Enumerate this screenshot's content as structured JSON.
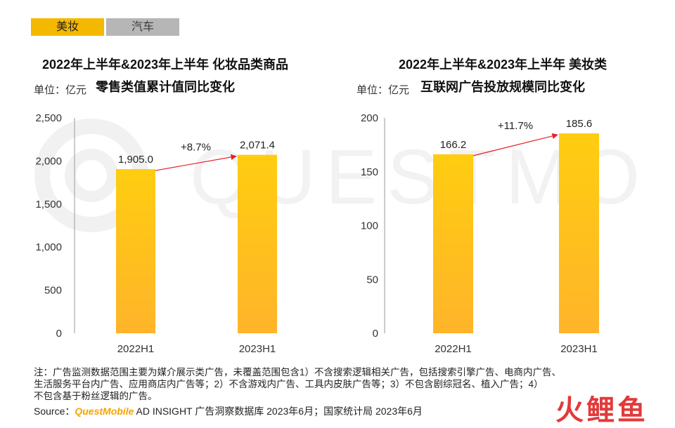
{
  "tabs": [
    {
      "label": "美妆",
      "active": true
    },
    {
      "label": "汽车",
      "active": false
    }
  ],
  "colors": {
    "accent": "#f5b800",
    "bar": "#ffc21a",
    "growth_arrow": "#e8202a",
    "axis": "#888888"
  },
  "watermark_text": "QUESTMOBILE",
  "panels": [
    {
      "title_line1": "2022年上半年&2023年上半年 化妆品类商品",
      "title_line2": "零售类值累计值同比变化",
      "unit": "单位：亿元"
    },
    {
      "title_line1": "2022年上半年&2023年上半年 美妆类",
      "title_line2": "互联网广告投放规模同比变化",
      "unit": "单位：亿元"
    }
  ],
  "chart_data": [
    {
      "type": "bar",
      "title": "2022年上半年&2023年上半年 化妆品类商品零售类值累计值同比变化",
      "ylabel": "单位：亿元",
      "categories": [
        "2022H1",
        "2023H1"
      ],
      "values": [
        1905.0,
        2071.4
      ],
      "value_labels": [
        "1,905.0",
        "2,071.4"
      ],
      "ylim": [
        0,
        2500
      ],
      "yticks": [
        0,
        500,
        1000,
        1500,
        2000,
        2500
      ],
      "ytick_labels": [
        "0",
        "500",
        "1,000",
        "1,500",
        "2,000",
        "2,500"
      ],
      "growth_label": "+8.7%",
      "grid": false
    },
    {
      "type": "bar",
      "title": "2022年上半年&2023年上半年 美妆类互联网广告投放规模同比变化",
      "ylabel": "单位：亿元",
      "categories": [
        "2022H1",
        "2023H1"
      ],
      "values": [
        166.2,
        185.6
      ],
      "value_labels": [
        "166.2",
        "185.6"
      ],
      "ylim": [
        0,
        200
      ],
      "yticks": [
        0,
        50,
        100,
        150,
        200
      ],
      "ytick_labels": [
        "0",
        "50",
        "100",
        "150",
        "200"
      ],
      "growth_label": "+11.7%",
      "grid": false
    }
  ],
  "footnote": {
    "line1": "注：广告监测数据范围主要为媒介展示类广告，未覆盖范围包含1）不含搜索逻辑相关广告，包括搜索引擎广告、电商内广告、",
    "line2": "生活服务平台内广告、应用商店内广告等；2）不含游戏内广告、工具内皮肤广告等；3）不包含剧综冠名、植入广告；4）",
    "line3": "不包含基于粉丝逻辑的广告。"
  },
  "source": {
    "prefix": "Source：",
    "brand": "QuestMobile",
    "text": " AD INSIGHT 广告洞察数据库 2023年6月；国家统计局 2023年6月"
  },
  "logo_text": "火鲤鱼"
}
